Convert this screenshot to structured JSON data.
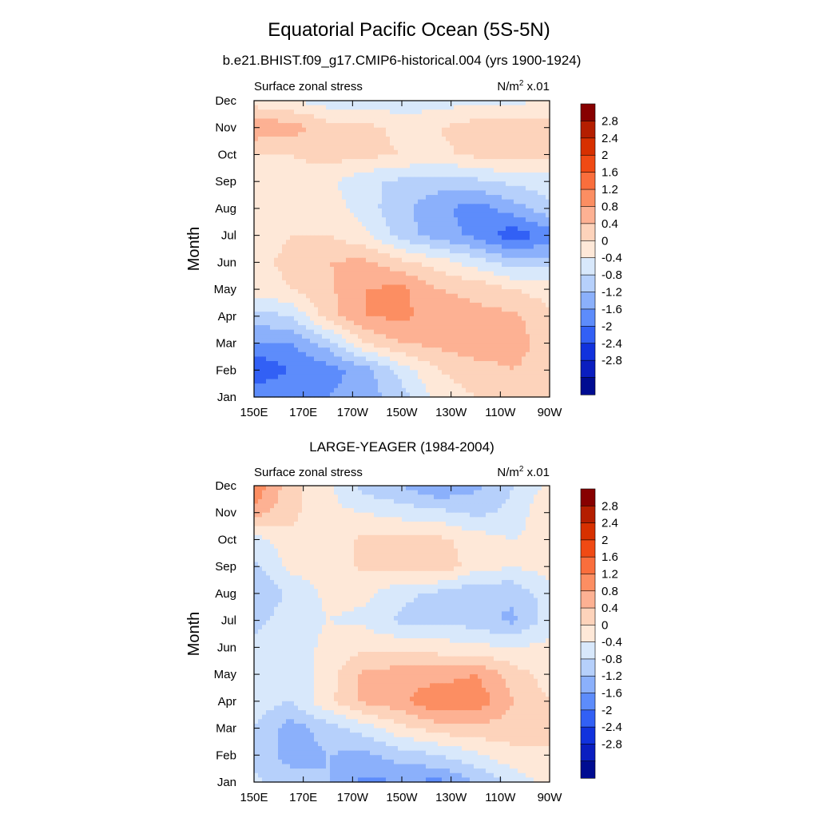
{
  "figure": {
    "title": "Equatorial Pacific Ocean (5S-5N)",
    "panel_titles": [
      "b.e21.BHIST.f09_g17.CMIP6-historical.004 (yrs 1900-1924)",
      "LARGE-YEAGER (1984-2004)"
    ]
  },
  "chart_data": [
    {
      "type": "heatmap",
      "title": "b.e21.BHIST.f09_g17.CMIP6-historical.004 (yrs 1900-1924)",
      "left_label": "Surface zonal stress",
      "right_label": "N/m",
      "right_label_sup": "2",
      "right_label_suffix": " x.01",
      "xlabel": "",
      "ylabel": "Month",
      "x_ticks": [
        "150E",
        "170E",
        "170W",
        "150W",
        "130W",
        "110W",
        "90W"
      ],
      "x_tick_lon": [
        150,
        170,
        190,
        210,
        230,
        250,
        270
      ],
      "y_ticks": [
        "Jan",
        "Feb",
        "Mar",
        "Apr",
        "May",
        "Jun",
        "Jul",
        "Aug",
        "Sep",
        "Oct",
        "Nov",
        "Dec"
      ],
      "xlim": [
        150,
        270
      ],
      "ylim": [
        1,
        12
      ],
      "contour_levels": [
        -2.8,
        -2.4,
        -2.0,
        -1.6,
        -1.2,
        -0.8,
        -0.4,
        0,
        0.4,
        0.8,
        1.2,
        1.6,
        2.0,
        2.4,
        2.8
      ],
      "grid_lon": [
        150,
        165,
        180,
        195,
        210,
        225,
        240,
        255,
        270
      ],
      "grid_month": [
        1,
        2,
        3,
        4,
        5,
        6,
        7,
        8,
        9,
        10,
        11,
        12
      ],
      "values": [
        [
          -1.2,
          -1.2,
          -1.2,
          -1.0,
          -0.6,
          0.2,
          0.4,
          0.4,
          0.4
        ],
        [
          -2.0,
          -1.6,
          -1.4,
          -1.0,
          -0.2,
          0.4,
          0.6,
          0.8,
          0.6
        ],
        [
          -1.2,
          -1.2,
          -0.6,
          0.4,
          0.8,
          0.9,
          1.1,
          1.0,
          0.6
        ],
        [
          -0.6,
          -0.4,
          0.6,
          1.2,
          1.3,
          1.0,
          0.9,
          0.9,
          0.5
        ],
        [
          0.2,
          0.4,
          0.7,
          1.2,
          1.3,
          0.8,
          0.7,
          0.4,
          0.2
        ],
        [
          0.3,
          0.5,
          0.8,
          0.9,
          0.5,
          0.2,
          -0.2,
          -0.6,
          -0.6
        ],
        [
          0.2,
          0.4,
          0.4,
          0.1,
          -0.6,
          -1.0,
          -1.3,
          -1.9,
          -1.4
        ],
        [
          0.2,
          0.3,
          0.2,
          -0.2,
          -0.7,
          -1.1,
          -1.4,
          -1.0,
          -0.5
        ],
        [
          0.0,
          0.2,
          0.1,
          -0.3,
          -0.5,
          -0.6,
          -0.5,
          -0.3,
          -0.2
        ],
        [
          0.4,
          0.4,
          0.6,
          0.5,
          0.4,
          0.3,
          0.5,
          0.6,
          0.5
        ],
        [
          1.1,
          1.0,
          0.6,
          0.5,
          0.3,
          0.4,
          0.6,
          0.7,
          0.6
        ],
        [
          0.2,
          0.0,
          -0.2,
          -0.2,
          -0.3,
          -0.2,
          -0.1,
          -0.1,
          0.0
        ]
      ]
    },
    {
      "type": "heatmap",
      "title": "LARGE-YEAGER (1984-2004)",
      "left_label": "Surface zonal stress",
      "right_label": "N/m",
      "right_label_sup": "2",
      "right_label_suffix": " x.01",
      "xlabel": "",
      "ylabel": "Month",
      "x_ticks": [
        "150E",
        "170E",
        "170W",
        "150W",
        "130W",
        "110W",
        "90W"
      ],
      "x_tick_lon": [
        150,
        170,
        190,
        210,
        230,
        250,
        270
      ],
      "y_ticks": [
        "Jan",
        "Feb",
        "Mar",
        "Apr",
        "May",
        "Jun",
        "Jul",
        "Aug",
        "Sep",
        "Oct",
        "Nov",
        "Dec"
      ],
      "xlim": [
        150,
        270
      ],
      "ylim": [
        1,
        12
      ],
      "contour_levels": [
        -2.8,
        -2.4,
        -2.0,
        -1.6,
        -1.2,
        -0.8,
        -0.4,
        0,
        0.4,
        0.8,
        1.2,
        1.6,
        2.0,
        2.4,
        2.8
      ],
      "grid_lon": [
        150,
        165,
        180,
        195,
        210,
        225,
        240,
        255,
        270
      ],
      "grid_month": [
        1,
        2,
        3,
        4,
        5,
        6,
        7,
        8,
        9,
        10,
        11,
        12
      ],
      "values": [
        [
          -0.3,
          -0.6,
          -0.8,
          -1.3,
          -1.2,
          -1.3,
          -0.8,
          -0.3,
          0.2
        ],
        [
          -0.5,
          -1.0,
          -0.8,
          -0.9,
          -0.6,
          -0.4,
          -0.1,
          0.3,
          0.4
        ],
        [
          -0.4,
          -1.0,
          -0.6,
          -0.2,
          0.3,
          0.6,
          0.7,
          0.6,
          0.4
        ],
        [
          -0.2,
          -0.4,
          0.3,
          0.9,
          1.1,
          1.6,
          1.5,
          0.8,
          0.4
        ],
        [
          -0.3,
          -0.4,
          0.2,
          0.9,
          1.0,
          1.0,
          1.2,
          0.6,
          0.2
        ],
        [
          -0.3,
          -0.2,
          0.1,
          0.3,
          0.3,
          0.2,
          0.1,
          0.0,
          0.1
        ],
        [
          -0.5,
          -0.2,
          0.0,
          -0.1,
          -0.5,
          -0.5,
          -0.6,
          -0.9,
          -0.2
        ],
        [
          -0.8,
          -0.3,
          0.1,
          0.1,
          -0.3,
          -0.5,
          -0.8,
          -0.7,
          -0.2
        ],
        [
          -0.5,
          0.1,
          0.2,
          0.5,
          0.5,
          0.7,
          0.2,
          0.0,
          0.2
        ],
        [
          -0.2,
          0.3,
          0.2,
          0.5,
          0.6,
          0.5,
          0.2,
          0.0,
          0.2
        ],
        [
          1.0,
          0.5,
          0.1,
          0.0,
          -0.2,
          -0.3,
          -0.5,
          -0.3,
          0.4
        ],
        [
          1.6,
          0.5,
          0.1,
          -0.6,
          -0.8,
          -1.2,
          -0.9,
          -0.4,
          0.1
        ]
      ]
    }
  ],
  "colorbar": {
    "labels": [
      "2.8",
      "2.4",
      "2",
      "1.6",
      "1.2",
      "0.8",
      "0.4",
      "0",
      "-0.4",
      "-0.8",
      "-1.2",
      "-1.6",
      "-2",
      "-2.4",
      "-2.8"
    ],
    "colors_top_to_bottom": [
      "#870000",
      "#b41e00",
      "#d73000",
      "#f04a14",
      "#fa6e3c",
      "#fc8e62",
      "#fdb193",
      "#fdd3bb",
      "#fee8d8",
      "#d8e8fb",
      "#b6d0fb",
      "#8bb0fb",
      "#5d8cfb",
      "#3260f5",
      "#1132dd",
      "#0a1ec0",
      "#000c91"
    ]
  }
}
